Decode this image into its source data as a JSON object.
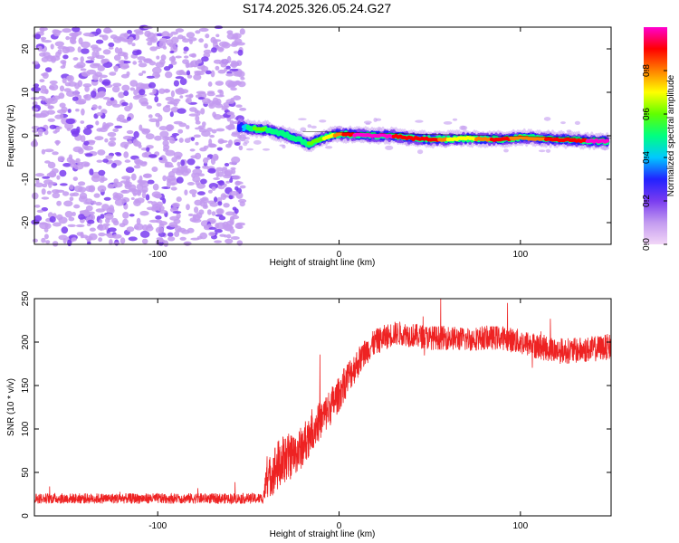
{
  "chart_data": [
    {
      "type": "heatmap",
      "title": "S174.2025.326.05.24.G27",
      "xlabel": "Height of straight line (km)",
      "ylabel": "Frequency (Hz)",
      "xlim": [
        -168,
        150
      ],
      "ylim": [
        -25,
        25
      ],
      "xticks": [
        -100,
        0,
        100
      ],
      "yticks": [
        -20,
        -10,
        0,
        10,
        20
      ],
      "noise_region_x": [
        -168,
        -53
      ],
      "ridge": {
        "x": [
          -55,
          -50,
          -45,
          -40,
          -35,
          -30,
          -25,
          -20,
          -17,
          -12,
          -5,
          0,
          10,
          20,
          30,
          40,
          50,
          60,
          70,
          80,
          90,
          100,
          110,
          120,
          130,
          140,
          148
        ],
        "y": [
          2,
          1.8,
          1.5,
          1.5,
          0.8,
          0.3,
          -0.5,
          -1.2,
          -2.0,
          -1.0,
          0.0,
          0.4,
          0.2,
          0.0,
          0.0,
          -0.6,
          -0.8,
          -0.8,
          -0.6,
          -0.8,
          -0.8,
          -0.4,
          -0.6,
          -0.8,
          -1.0,
          -1.2,
          -1.3
        ],
        "amplitude": [
          0.3,
          0.5,
          0.6,
          0.55,
          0.5,
          0.5,
          0.5,
          0.5,
          0.55,
          0.6,
          0.7,
          0.8,
          1.0,
          1.0,
          0.95,
          0.85,
          0.95,
          0.75,
          0.7,
          0.8,
          0.95,
          0.75,
          0.8,
          0.95,
          0.85,
          1.0,
          0.95
        ]
      },
      "colorbar": {
        "label": "Normalized spectral amplitude",
        "range": [
          0,
          1
        ],
        "ticks": [
          "0.0",
          "0.2",
          "0.4",
          "0.6",
          "0.8"
        ],
        "colors": [
          "#f2d6f7",
          "#c39bf0",
          "#7a3cf0",
          "#2222ff",
          "#00c8ff",
          "#00ff80",
          "#60ff00",
          "#ffff00",
          "#ff8000",
          "#ff0000",
          "#ff00d0"
        ]
      }
    },
    {
      "type": "line",
      "xlabel": "Height of straight line (km)",
      "ylabel": "SNR (10 * v/v)",
      "xlim": [
        -168,
        150
      ],
      "ylim": [
        0,
        250
      ],
      "xticks": [
        -100,
        0,
        100
      ],
      "yticks": [
        0,
        50,
        100,
        150,
        200,
        250
      ],
      "series": [
        {
          "name": "SNR",
          "color": "#ee2222",
          "x": [
            -168,
            -150,
            -130,
            -110,
            -90,
            -70,
            -50,
            -42,
            -40,
            -35,
            -30,
            -25,
            -20,
            -15,
            -10,
            -5,
            0,
            5,
            10,
            15,
            20,
            25,
            30,
            35,
            40,
            50,
            60,
            70,
            80,
            90,
            100,
            110,
            120,
            130,
            140,
            150
          ],
          "y": [
            20,
            20,
            20,
            20,
            20,
            20,
            20,
            20,
            40,
            55,
            65,
            70,
            80,
            100,
            110,
            125,
            140,
            160,
            175,
            190,
            200,
            205,
            210,
            210,
            208,
            205,
            205,
            203,
            205,
            205,
            200,
            195,
            190,
            190,
            192,
            195
          ],
          "spread": [
            6,
            6,
            6,
            6,
            6,
            6,
            6,
            6,
            20,
            30,
            30,
            25,
            25,
            25,
            22,
            22,
            20,
            20,
            18,
            16,
            15,
            15,
            14,
            14,
            14,
            14,
            14,
            14,
            14,
            14,
            15,
            15,
            15,
            15,
            15,
            15
          ]
        }
      ]
    }
  ]
}
